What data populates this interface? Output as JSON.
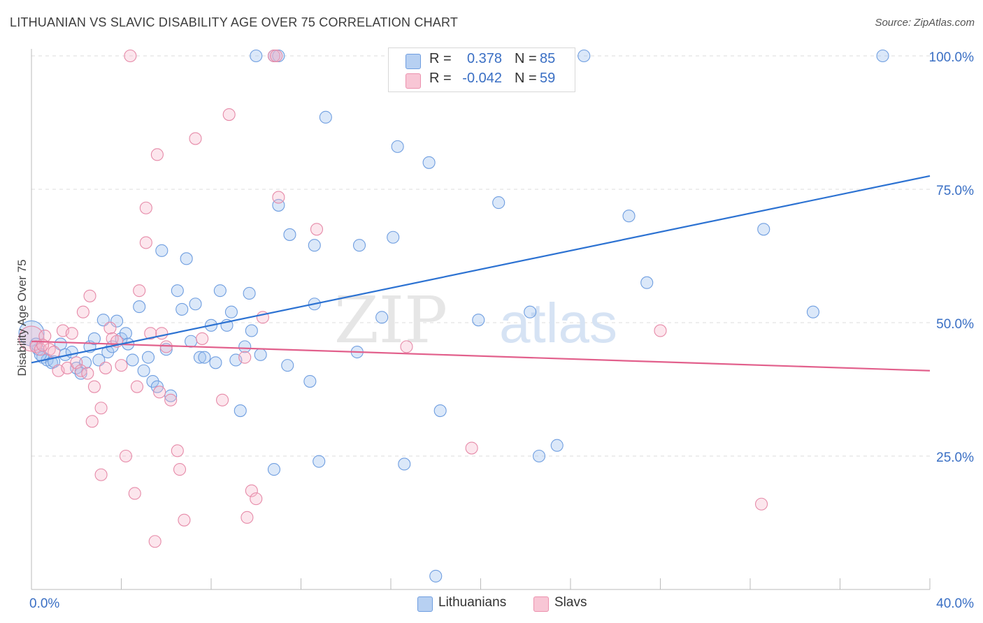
{
  "title": "LITHUANIAN VS SLAVIC DISABILITY AGE OVER 75 CORRELATION CHART",
  "source": "Source: ZipAtlas.com",
  "watermark": {
    "part1": "ZIP",
    "part2": "atlas"
  },
  "legend": {
    "rows": [
      {
        "r_label": "R =",
        "r_value": "0.378",
        "n_label": "N =",
        "n_value": "85",
        "fill": "#b7d0f2",
        "stroke": "#6f9ee0"
      },
      {
        "r_label": "R =",
        "r_value": "-0.042",
        "n_label": "N =",
        "n_value": "59",
        "fill": "#f8c6d5",
        "stroke": "#ec92ae"
      }
    ]
  },
  "bottom_legend": [
    {
      "label": "Lithuanians",
      "fill": "#b7d0f2",
      "stroke": "#6f9ee0"
    },
    {
      "label": "Slavs",
      "fill": "#f8c6d5",
      "stroke": "#ec92ae"
    }
  ],
  "colors": {
    "lith_fill": "rgba(160,195,240,0.38)",
    "lith_stroke": "#6f9ee0",
    "lith_line": "#2c72d2",
    "slav_fill": "rgba(246,182,202,0.35)",
    "slav_stroke": "#e68aa8",
    "slav_line": "#e2608c",
    "tick_label": "#3a6fc4",
    "grid": "#dcdcdc"
  },
  "chart_data": {
    "type": "scatter",
    "title": "LITHUANIAN VS SLAVIC DISABILITY AGE OVER 75 CORRELATION CHART",
    "ylabel": "Disability Age Over 75",
    "xlabel": "",
    "xlim": [
      0,
      40
    ],
    "ylim": [
      0,
      102
    ],
    "x_tick_labels": [
      {
        "value": 0,
        "label": "0.0%"
      },
      {
        "value": 40,
        "label": "40.0%"
      }
    ],
    "y_tick_labels": [
      {
        "value": 25,
        "label": "25.0%"
      },
      {
        "value": 50,
        "label": "50.0%"
      },
      {
        "value": 75,
        "label": "75.0%"
      },
      {
        "value": 100,
        "label": "100.0%"
      }
    ],
    "x_minor_ticks": [
      4,
      8,
      12,
      16,
      20,
      24,
      28,
      32,
      36
    ],
    "grid": true,
    "series": [
      {
        "name": "Lithuanians",
        "trend": {
          "x": [
            0,
            40
          ],
          "y": [
            42.5,
            77.5
          ]
        },
        "points": [
          [
            0.0,
            48.0
          ],
          [
            0.3,
            45.0
          ],
          [
            0.5,
            43.5
          ],
          [
            0.7,
            43.0
          ],
          [
            0.9,
            42.5
          ],
          [
            1.3,
            46.0
          ],
          [
            1.5,
            44.0
          ],
          [
            1.8,
            44.5
          ],
          [
            2.0,
            41.5
          ],
          [
            2.2,
            40.5
          ],
          [
            2.4,
            42.5
          ],
          [
            2.6,
            45.5
          ],
          [
            2.8,
            47.0
          ],
          [
            3.0,
            43.0
          ],
          [
            3.2,
            50.5
          ],
          [
            3.4,
            44.5
          ],
          [
            3.6,
            45.5
          ],
          [
            3.8,
            50.3
          ],
          [
            4.0,
            47.0
          ],
          [
            4.2,
            48.0
          ],
          [
            4.3,
            46.0
          ],
          [
            4.5,
            43.0
          ],
          [
            4.8,
            53.0
          ],
          [
            5.0,
            41.0
          ],
          [
            5.2,
            43.5
          ],
          [
            5.4,
            39.0
          ],
          [
            5.6,
            38.0
          ],
          [
            5.8,
            63.5
          ],
          [
            6.0,
            45.0
          ],
          [
            6.2,
            36.3
          ],
          [
            6.5,
            56.0
          ],
          [
            6.7,
            52.5
          ],
          [
            6.9,
            62.0
          ],
          [
            7.1,
            46.5
          ],
          [
            7.3,
            53.5
          ],
          [
            7.5,
            43.5
          ],
          [
            7.7,
            43.5
          ],
          [
            8.0,
            49.5
          ],
          [
            8.2,
            42.5
          ],
          [
            8.4,
            56.0
          ],
          [
            8.7,
            49.5
          ],
          [
            8.9,
            52.0
          ],
          [
            9.1,
            43.0
          ],
          [
            9.3,
            33.5
          ],
          [
            9.5,
            45.5
          ],
          [
            9.7,
            55.5
          ],
          [
            9.8,
            48.5
          ],
          [
            10.2,
            44.0
          ],
          [
            10.8,
            22.5
          ],
          [
            11.0,
            72.0
          ],
          [
            11.4,
            42.0
          ],
          [
            11.5,
            66.5
          ],
          [
            12.4,
            39.0
          ],
          [
            12.6,
            64.5
          ],
          [
            12.6,
            53.5
          ],
          [
            12.8,
            24.0
          ],
          [
            13.1,
            88.5
          ],
          [
            14.5,
            44.5
          ],
          [
            14.6,
            64.5
          ],
          [
            15.6,
            51.0
          ],
          [
            16.1,
            66.0
          ],
          [
            16.3,
            83.0
          ],
          [
            16.6,
            23.5
          ],
          [
            17.7,
            80.0
          ],
          [
            18.0,
            2.5
          ],
          [
            18.2,
            33.5
          ],
          [
            19.9,
            50.5
          ],
          [
            20.8,
            72.5
          ],
          [
            22.2,
            52.0
          ],
          [
            22.6,
            25.0
          ],
          [
            23.4,
            27.0
          ],
          [
            26.6,
            70.0
          ],
          [
            27.4,
            57.5
          ],
          [
            32.6,
            67.5
          ],
          [
            34.8,
            52.0
          ],
          [
            10.0,
            100.0
          ],
          [
            10.8,
            100.0
          ],
          [
            19.5,
            100.0
          ],
          [
            21.2,
            100.0
          ],
          [
            24.6,
            100.0
          ],
          [
            37.9,
            100.0
          ],
          [
            11.0,
            100.0
          ],
          [
            0.2,
            46.0
          ],
          [
            0.4,
            44.0
          ],
          [
            1.0,
            42.7
          ]
        ]
      },
      {
        "name": "Slavs",
        "trend": {
          "x": [
            0,
            40
          ],
          "y": [
            46.5,
            41.0
          ]
        },
        "points": [
          [
            0.0,
            47.0
          ],
          [
            0.2,
            45.5
          ],
          [
            0.4,
            45.0
          ],
          [
            0.6,
            47.5
          ],
          [
            0.8,
            45.0
          ],
          [
            1.0,
            44.5
          ],
          [
            1.2,
            41.0
          ],
          [
            1.4,
            48.5
          ],
          [
            1.6,
            41.5
          ],
          [
            1.8,
            48.0
          ],
          [
            2.0,
            42.5
          ],
          [
            2.2,
            41.0
          ],
          [
            2.3,
            52.0
          ],
          [
            2.5,
            40.5
          ],
          [
            2.6,
            55.0
          ],
          [
            2.7,
            31.5
          ],
          [
            2.8,
            38.0
          ],
          [
            3.1,
            34.0
          ],
          [
            3.1,
            21.5
          ],
          [
            3.3,
            41.5
          ],
          [
            3.5,
            49.0
          ],
          [
            3.6,
            47.0
          ],
          [
            3.8,
            46.5
          ],
          [
            4.0,
            42.0
          ],
          [
            4.2,
            25.0
          ],
          [
            4.4,
            100.0
          ],
          [
            4.6,
            18.0
          ],
          [
            4.7,
            38.0
          ],
          [
            4.8,
            56.0
          ],
          [
            5.1,
            65.0
          ],
          [
            5.1,
            71.5
          ],
          [
            5.3,
            48.0
          ],
          [
            5.5,
            9.0
          ],
          [
            5.6,
            81.5
          ],
          [
            5.7,
            37.0
          ],
          [
            5.8,
            48.0
          ],
          [
            6.0,
            45.5
          ],
          [
            6.2,
            35.5
          ],
          [
            6.5,
            26.0
          ],
          [
            6.6,
            22.5
          ],
          [
            6.8,
            13.0
          ],
          [
            7.3,
            84.5
          ],
          [
            7.6,
            47.0
          ],
          [
            8.5,
            35.5
          ],
          [
            8.8,
            89.0
          ],
          [
            9.5,
            43.5
          ],
          [
            9.6,
            13.5
          ],
          [
            9.8,
            18.5
          ],
          [
            10.0,
            17.0
          ],
          [
            10.3,
            51.0
          ],
          [
            10.8,
            100.0
          ],
          [
            10.9,
            100.0
          ],
          [
            11.0,
            73.5
          ],
          [
            12.7,
            67.5
          ],
          [
            16.7,
            45.5
          ],
          [
            19.6,
            26.5
          ],
          [
            28.0,
            48.5
          ],
          [
            32.5,
            16.0
          ],
          [
            0.5,
            45.8
          ]
        ]
      }
    ]
  }
}
